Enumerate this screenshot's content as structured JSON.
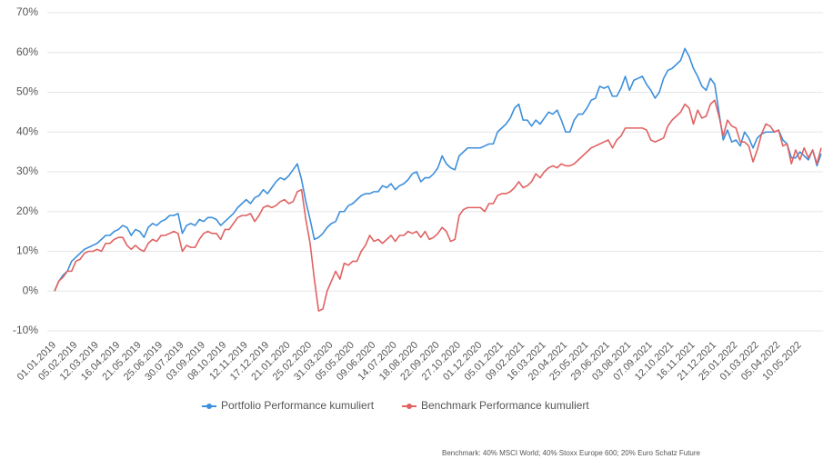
{
  "chart_data": {
    "type": "line",
    "categories": [
      "01.01.2019",
      null,
      null,
      null,
      null,
      "05.02.2019",
      null,
      null,
      null,
      null,
      "12.03.2019",
      null,
      null,
      null,
      null,
      "16.04.2019",
      null,
      null,
      null,
      null,
      "21.05.2019",
      null,
      null,
      null,
      null,
      "25.06.2019",
      null,
      null,
      null,
      null,
      "30.07.2019",
      null,
      null,
      null,
      null,
      "03.09.2019",
      null,
      null,
      null,
      null,
      "08.10.2019",
      null,
      null,
      null,
      null,
      "12.11.2019",
      null,
      null,
      null,
      null,
      "17.12.2019",
      null,
      null,
      null,
      null,
      "21.01.2020",
      null,
      null,
      null,
      null,
      "25.02.2020",
      null,
      null,
      null,
      null,
      "31.03.2020",
      null,
      null,
      null,
      null,
      "05.05.2020",
      null,
      null,
      null,
      null,
      "09.06.2020",
      null,
      null,
      null,
      null,
      "14.07.2020",
      null,
      null,
      null,
      null,
      "18.08.2020",
      null,
      null,
      null,
      null,
      "22.09.2020",
      null,
      null,
      null,
      null,
      "27.10.2020",
      null,
      null,
      null,
      null,
      "01.12.2020",
      null,
      null,
      null,
      null,
      "05.01.2021",
      null,
      null,
      null,
      null,
      "09.02.2021",
      null,
      null,
      null,
      null,
      "16.03.2021",
      null,
      null,
      null,
      null,
      "20.04.2021",
      null,
      null,
      null,
      null,
      "25.05.2021",
      null,
      null,
      null,
      null,
      "29.06.2021",
      null,
      null,
      null,
      null,
      "03.08.2021",
      null,
      null,
      null,
      null,
      "07.09.2021",
      null,
      null,
      null,
      null,
      "12.10.2021",
      null,
      null,
      null,
      null,
      "16.11.2021",
      null,
      null,
      null,
      null,
      "21.12.2021",
      null,
      null,
      null,
      null,
      "25.01.2022",
      null,
      null,
      null,
      null,
      "01.03.2022",
      null,
      null,
      null,
      null,
      "05.04.2022",
      null,
      null,
      null,
      null,
      "10.05.2022",
      null,
      null,
      null,
      null,
      null
    ],
    "series": [
      {
        "name": "Portfolio Performance kumuliert",
        "color": "#3d8fdb",
        "values": [
          0,
          2.5,
          4,
          5,
          7.5,
          8.5,
          9.5,
          10.5,
          11,
          11.5,
          12,
          13,
          14,
          14,
          15,
          15.5,
          16.5,
          16,
          14,
          15.5,
          15,
          13.5,
          16,
          17,
          16.5,
          17.5,
          18,
          19,
          19,
          19.5,
          14.5,
          16.5,
          17,
          16.5,
          18,
          17.5,
          18.5,
          18.5,
          18,
          16.5,
          17.5,
          18.5,
          19.5,
          21,
          22,
          23,
          22,
          23.5,
          24,
          25.5,
          24.5,
          26,
          27.5,
          28.5,
          28,
          29,
          30.5,
          32,
          28,
          22.5,
          18,
          13,
          13.5,
          14.5,
          16,
          17,
          17.5,
          20,
          20,
          21.5,
          22,
          23,
          24,
          24.5,
          24.5,
          25,
          25,
          26.5,
          26,
          27,
          25.5,
          26.5,
          27,
          28,
          29.5,
          30,
          27.5,
          28.5,
          28.5,
          29.5,
          31,
          34,
          32,
          31,
          30.5,
          34,
          35,
          36,
          36,
          36,
          36,
          36.5,
          37,
          37,
          40,
          41,
          42,
          43.5,
          46,
          47,
          43,
          43,
          41.5,
          43,
          42,
          43.5,
          45,
          44.5,
          45.5,
          43,
          40,
          40,
          43,
          44.5,
          44.5,
          46,
          48,
          48.5,
          51.5,
          51,
          51.5,
          49,
          49,
          51,
          54,
          50.5,
          53,
          53.5,
          54,
          52,
          50.5,
          48.5,
          50,
          53.5,
          55.5,
          56,
          57,
          58,
          61,
          59,
          56,
          54,
          51.5,
          50.5,
          53.5,
          52,
          45,
          38,
          40.5,
          37.5,
          38,
          36.5,
          40,
          38.5,
          36,
          38.5,
          39.5,
          40,
          40,
          40,
          40.5,
          38,
          37,
          33.5,
          33.5,
          35,
          34,
          33,
          35.5,
          31.5,
          34.5
        ]
      },
      {
        "name": "Benchmark Performance kumuliert",
        "color": "#e06262",
        "values": [
          0,
          2.5,
          3.5,
          5,
          5,
          7.5,
          8,
          9.5,
          10,
          10,
          10.5,
          10,
          12,
          12,
          13,
          13.5,
          13.5,
          11.5,
          10.5,
          11.5,
          10.5,
          10,
          12,
          13,
          12.5,
          14,
          14,
          14.5,
          15,
          14.5,
          10,
          11.5,
          11,
          11,
          13,
          14.5,
          15,
          14.5,
          14.5,
          13,
          15.5,
          15.5,
          17,
          18.5,
          19,
          19,
          19.5,
          17.5,
          19,
          21,
          21.5,
          21,
          21.5,
          22.5,
          23,
          22,
          22.5,
          25,
          25.5,
          18,
          12,
          3,
          -5,
          -4.5,
          0,
          2.5,
          5,
          3,
          7,
          6.5,
          7.5,
          7.5,
          10,
          11.5,
          14,
          12.5,
          13,
          12,
          13,
          14,
          12.5,
          14,
          14,
          15,
          14.5,
          15,
          13.5,
          15,
          13,
          13.5,
          14.5,
          16,
          15,
          12.5,
          13,
          19,
          20.5,
          21,
          21,
          21,
          21,
          20,
          22,
          22,
          24,
          24.5,
          24.5,
          25,
          26,
          27.5,
          26,
          26.5,
          27.5,
          29.5,
          28.5,
          30,
          31,
          31.5,
          31,
          32,
          31.5,
          31.5,
          32,
          33,
          34,
          35,
          36,
          36.5,
          37,
          37.5,
          38,
          36,
          38,
          39,
          41,
          41,
          41,
          41,
          41,
          40.5,
          38,
          37.5,
          38,
          38.5,
          41.5,
          43,
          44,
          45,
          47,
          46,
          42,
          45.5,
          43.5,
          44,
          47,
          48,
          44,
          39,
          43,
          41.5,
          41,
          37.5,
          37.5,
          36.5,
          32.5,
          35.5,
          39.5,
          42,
          41.5,
          40,
          40.5,
          36.5,
          37,
          32,
          35.5,
          33,
          36,
          33.5,
          35.5,
          32,
          36
        ]
      }
    ],
    "ylim": [
      -10,
      70
    ],
    "yticks": [
      {
        "value": -10,
        "label": "-10%"
      },
      {
        "value": 0,
        "label": "0%"
      },
      {
        "value": 10,
        "label": "10%"
      },
      {
        "value": 20,
        "label": "20%"
      },
      {
        "value": 30,
        "label": "30%"
      },
      {
        "value": 40,
        "label": "40%"
      },
      {
        "value": 50,
        "label": "50%"
      },
      {
        "value": 60,
        "label": "60%"
      },
      {
        "value": 70,
        "label": "70%"
      }
    ],
    "grid": true,
    "legend": "bottom",
    "footnote": "Benchmark: 40% MSCI World; 40% Stoxx Europe 600; 20% Euro Schatz Future"
  }
}
